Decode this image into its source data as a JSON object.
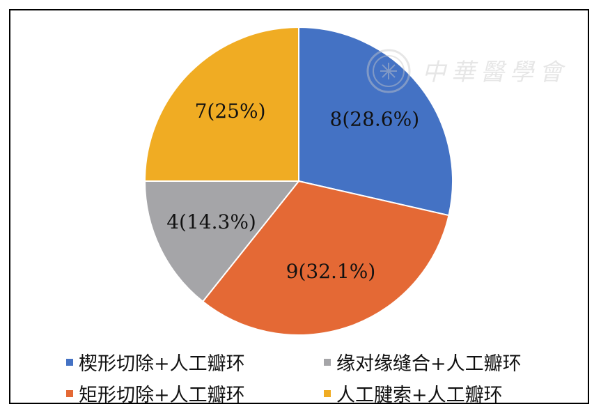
{
  "chart_data": {
    "type": "pie",
    "slices": [
      {
        "name": "楔形切除+人工瓣环",
        "value": 8,
        "label": "8(28.6%)",
        "color": "#4472c4"
      },
      {
        "name": "矩形切除+人工瓣环",
        "value": 9,
        "label": "9(32.1%)",
        "color": "#e46935"
      },
      {
        "name": "缘对缘缝合+人工瓣环",
        "value": 4,
        "label": "4(14.3%)",
        "color": "#a5a5a8"
      },
      {
        "name": "人工腱索+人工瓣环",
        "value": 7,
        "label": "7(25%)",
        "color": "#f0ac23"
      }
    ],
    "legend": {
      "items": [
        {
          "label": "楔形切除+人工瓣环",
          "color": "#4472c4"
        },
        {
          "label": "缘对缘缝合+人工瓣环",
          "color": "#a5a5a8"
        },
        {
          "label": "矩形切除+人工瓣环",
          "color": "#e46935"
        },
        {
          "label": "人工腱索+人工瓣环",
          "color": "#f0ac23"
        }
      ],
      "placement": "bottom"
    },
    "title": ""
  },
  "watermark": {
    "text": "中華醫學會"
  }
}
